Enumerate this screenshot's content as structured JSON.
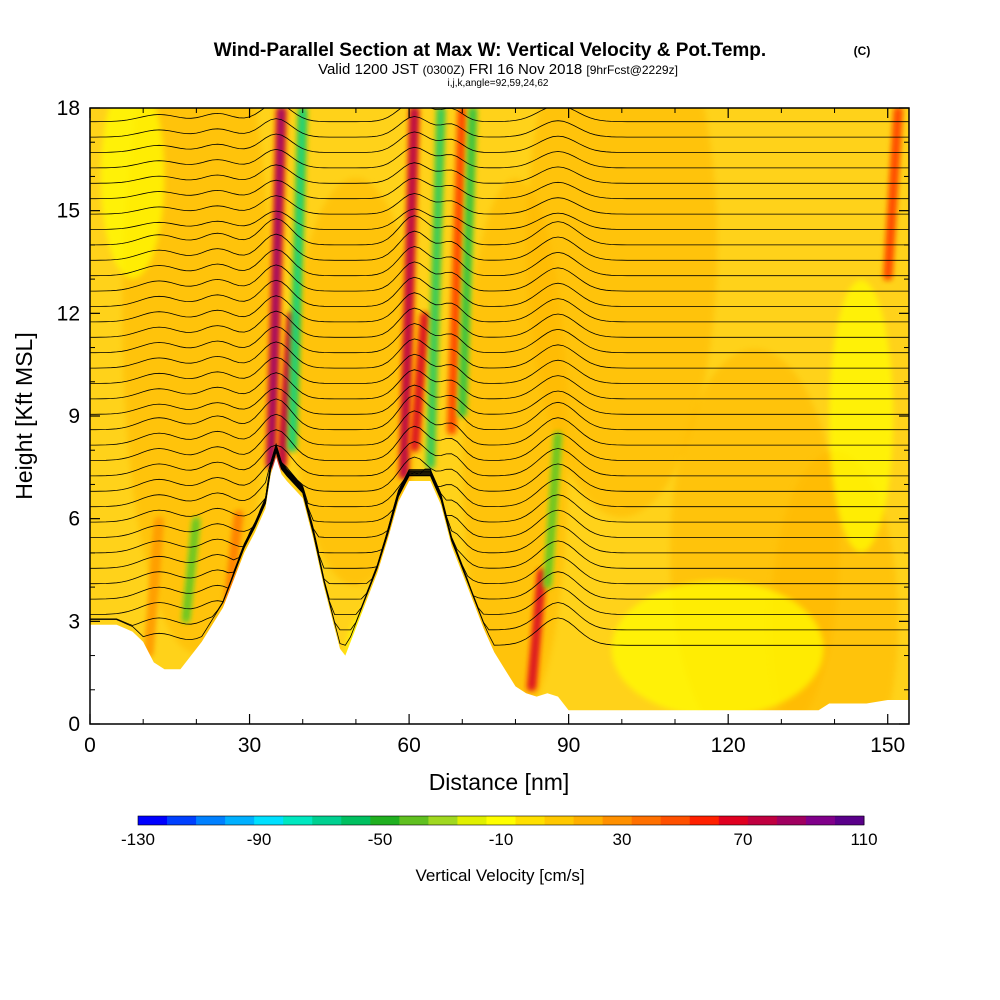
{
  "chart_data": {
    "type": "heatmap",
    "title": "Wind-Parallel Section at Max W: Vertical Velocity & Pot.Temp.",
    "title_mark": "(C)",
    "subtitle": {
      "valid_prefix": "Valid 1200 JST",
      "utc": "(0300Z)",
      "date": "FRI 16 Nov 2018",
      "forecast": "[9hrFcst@2229z]",
      "indices": "i,j,k,angle=92,59,24,62"
    },
    "xlabel": "Distance [nm]",
    "ylabel": "Height [Kft MSL]",
    "xlim": [
      0,
      154
    ],
    "ylim": [
      0,
      18
    ],
    "xticks": [
      0,
      30,
      60,
      90,
      120,
      150
    ],
    "yticks": [
      0,
      3,
      6,
      9,
      12,
      15,
      18
    ],
    "colorbar": {
      "title": "Vertical Velocity [cm/s]",
      "range": [
        -130,
        110
      ],
      "labels": [
        "-130",
        "-90",
        "-50",
        "-10",
        "30",
        "70",
        "110"
      ],
      "colors": [
        "#0000ff",
        "#0040ff",
        "#0080ff",
        "#00b0ff",
        "#00e0ff",
        "#00e8c0",
        "#00d090",
        "#00c060",
        "#20b020",
        "#60c020",
        "#a0d820",
        "#e0f000",
        "#ffff00",
        "#ffe000",
        "#ffc800",
        "#ffb000",
        "#ff9000",
        "#ff7000",
        "#ff5000",
        "#ff2000",
        "#e00020",
        "#c00040",
        "#a00060",
        "#80008a",
        "#5a008a"
      ]
    },
    "terrain": [
      [
        0,
        2.9
      ],
      [
        5,
        2.9
      ],
      [
        8,
        2.7
      ],
      [
        10,
        2.4
      ],
      [
        12,
        1.8
      ],
      [
        14,
        1.6
      ],
      [
        17,
        1.6
      ],
      [
        19,
        2.0
      ],
      [
        21,
        2.4
      ],
      [
        23,
        2.9
      ],
      [
        25,
        3.4
      ],
      [
        27,
        4.2
      ],
      [
        29,
        5.0
      ],
      [
        31,
        5.6
      ],
      [
        33,
        6.3
      ],
      [
        34,
        7.3
      ],
      [
        35,
        7.8
      ],
      [
        36,
        7.3
      ],
      [
        37,
        7.1
      ],
      [
        40,
        6.6
      ],
      [
        42,
        5.4
      ],
      [
        44,
        4.0
      ],
      [
        46,
        2.8
      ],
      [
        47,
        2.2
      ],
      [
        48,
        2.0
      ],
      [
        50,
        2.8
      ],
      [
        52,
        3.6
      ],
      [
        54,
        4.4
      ],
      [
        56,
        5.4
      ],
      [
        58,
        6.5
      ],
      [
        60,
        7.1
      ],
      [
        64,
        7.1
      ],
      [
        66,
        6.4
      ],
      [
        68,
        5.2
      ],
      [
        70,
        4.4
      ],
      [
        72,
        3.6
      ],
      [
        74,
        2.8
      ],
      [
        76,
        2.1
      ],
      [
        78,
        1.6
      ],
      [
        80,
        1.1
      ],
      [
        82,
        0.9
      ],
      [
        84,
        0.8
      ],
      [
        86,
        0.9
      ],
      [
        88,
        0.8
      ],
      [
        90,
        0.4
      ],
      [
        137,
        0.4
      ],
      [
        139,
        0.6
      ],
      [
        146,
        0.6
      ],
      [
        150,
        0.7
      ],
      [
        154,
        0.7
      ]
    ],
    "updrafts": [
      {
        "x": 11,
        "ybot": 2.0,
        "ytop": 6.0,
        "w": 30
      },
      {
        "x": 26,
        "ybot": 3.5,
        "ytop": 6.2,
        "w": 40
      },
      {
        "x": 34,
        "ybot": 7.5,
        "ytop": 18,
        "w": 100
      },
      {
        "x": 36,
        "ybot": 7.5,
        "ytop": 12,
        "w": 90
      },
      {
        "x": 59,
        "ybot": 7.2,
        "ytop": 18,
        "w": 90
      },
      {
        "x": 61,
        "ybot": 8.0,
        "ytop": 12,
        "w": 80
      },
      {
        "x": 68,
        "ybot": 8.5,
        "ytop": 18,
        "w": 60
      },
      {
        "x": 83,
        "ybot": 1.0,
        "ytop": 4.5,
        "w": 80
      },
      {
        "x": 150,
        "ybot": 13.0,
        "ytop": 18,
        "w": 60
      }
    ],
    "downdrafts": [
      {
        "x": 38,
        "ybot": 8.0,
        "ytop": 18,
        "w": -80
      },
      {
        "x": 64,
        "ybot": 7.5,
        "ytop": 18,
        "w": -70
      },
      {
        "x": 70,
        "ybot": 9.0,
        "ytop": 18,
        "w": -60
      },
      {
        "x": 86,
        "ybot": 4.0,
        "ytop": 8.5,
        "w": -50
      },
      {
        "x": 18,
        "ybot": 3.0,
        "ytop": 6.0,
        "w": -50
      }
    ],
    "theta_isentropes": {
      "base_ft": [
        2.3,
        18.5
      ],
      "spacing_kft": 0.45
    }
  }
}
